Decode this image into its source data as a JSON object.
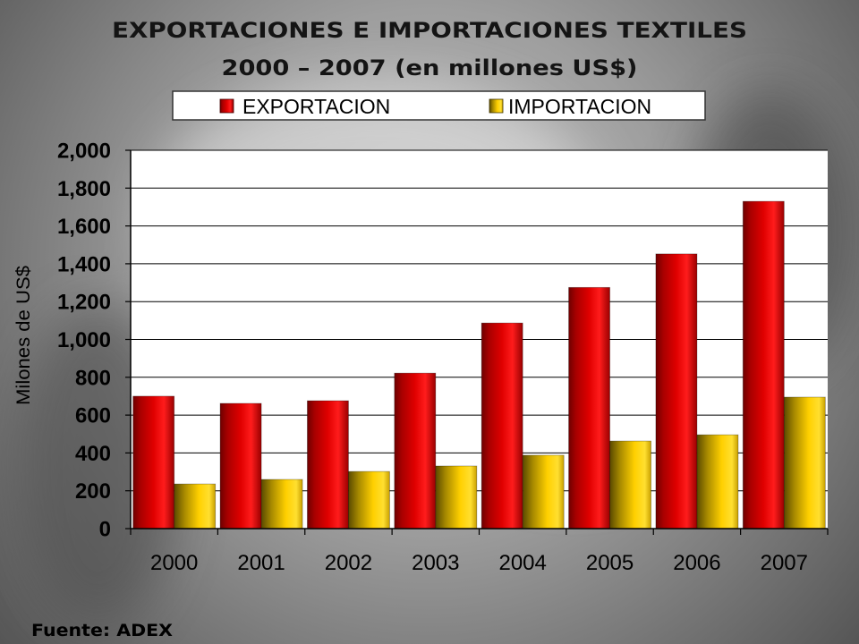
{
  "chart_data": {
    "type": "bar",
    "title": "EXPORTACIONES E IMPORTACIONES TEXTILES",
    "subtitle": "2000 – 2007 (en millones US$)",
    "ylabel": "Milones de US$",
    "categories": [
      "2000",
      "2001",
      "2002",
      "2003",
      "2004",
      "2005",
      "2006",
      "2007"
    ],
    "series": [
      {
        "name": "EXPORTACION",
        "color": "#e00000",
        "values": [
          700,
          662,
          676,
          822,
          1087,
          1275,
          1452,
          1730
        ]
      },
      {
        "name": "IMPORTACION",
        "color": "#ffd000",
        "values": [
          236,
          260,
          302,
          331,
          388,
          463,
          496,
          695
        ]
      }
    ],
    "ylim": [
      0,
      2000
    ],
    "yticks": [
      0,
      200,
      400,
      600,
      800,
      1000,
      1200,
      1400,
      1600,
      1800,
      2000
    ],
    "ytick_labels": [
      "0",
      "200",
      "400",
      "600",
      "800",
      "1,000",
      "1,200",
      "1,400",
      "1,600",
      "1,800",
      "2,000"
    ],
    "grid": true,
    "legend": "top"
  },
  "source": "Fuente: ADEX"
}
